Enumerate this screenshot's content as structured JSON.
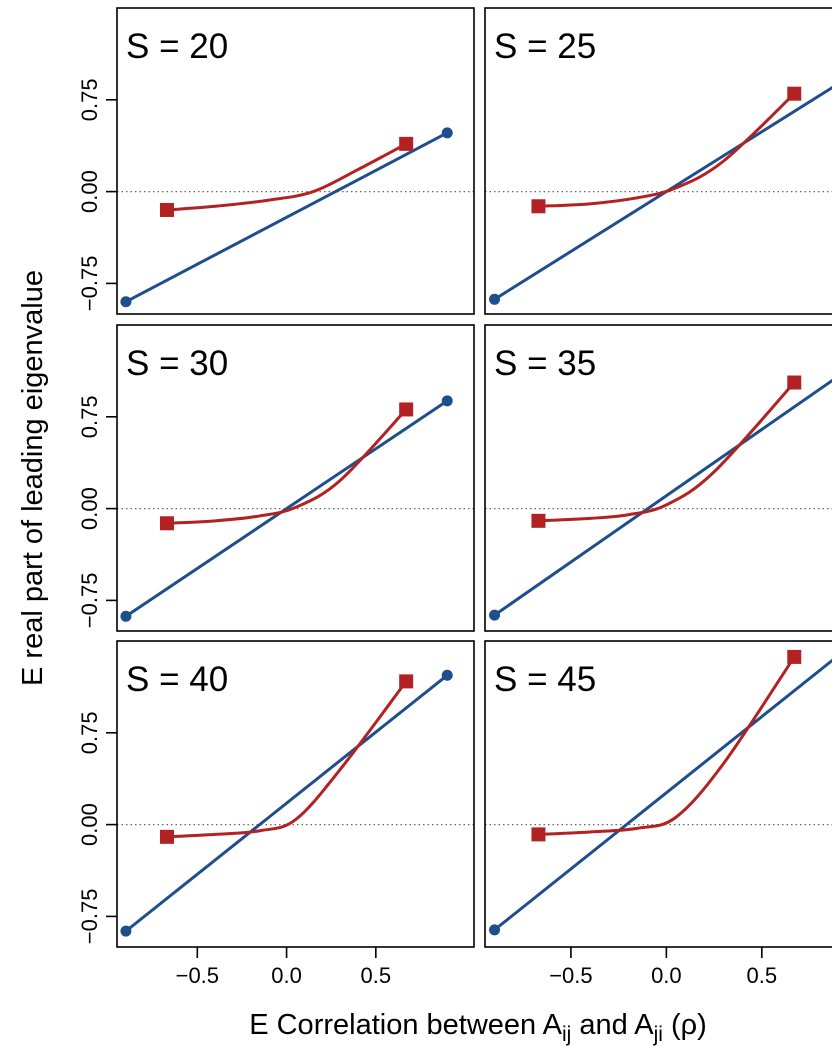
{
  "colors": {
    "linear": "#1f4e8c",
    "nonlinear": "#b22222",
    "zero_line": "#666666",
    "frame": "#000000"
  },
  "axes": {
    "ylabel": "E real part of leading eigenvalue",
    "xlabel": {
      "prefix": "E Correlation between A",
      "sub1": "ij",
      "middle": " and A",
      "sub2": "ji",
      "suffix": " (ρ)"
    },
    "x_tick_labels": [
      "−0.5",
      "0.0",
      "0.5"
    ],
    "y_tick_labels": [
      "−0.75",
      "0.00",
      "0.75"
    ]
  },
  "chart_data": [
    {
      "type": "line",
      "title": "S = 20",
      "xlim": [
        -0.95,
        1.05
      ],
      "ylim": [
        -1.0,
        1.5
      ],
      "x_ticks": [
        -0.5,
        0.0,
        0.5
      ],
      "y_ticks": [
        -0.75,
        0.0,
        0.75
      ],
      "grid": false,
      "zero_line": true,
      "series": [
        {
          "marker": "circle",
          "points": [
            [
              -0.9,
              -0.9
            ],
            [
              0.9,
              0.48
            ]
          ]
        },
        {
          "marker": "square",
          "points": [
            [
              -0.67,
              -0.15
            ],
            [
              -0.4,
              -0.12
            ],
            [
              -0.1,
              -0.07
            ],
            [
              0.15,
              0.0
            ],
            [
              0.4,
              0.18
            ],
            [
              0.67,
              0.39
            ]
          ]
        }
      ]
    },
    {
      "type": "line",
      "title": "S = 25",
      "xlim": [
        -0.95,
        0.92
      ],
      "ylim": [
        -1.0,
        1.5
      ],
      "x_ticks": [
        -0.5,
        0.0,
        0.5
      ],
      "y_ticks": [
        -0.75,
        0.0,
        0.75
      ],
      "grid": false,
      "zero_line": true,
      "series": [
        {
          "marker": "circle",
          "points": [
            [
              -0.9,
              -0.88
            ],
            [
              0.9,
              0.88
            ]
          ]
        },
        {
          "marker": "square",
          "points": [
            [
              -0.67,
              -0.12
            ],
            [
              -0.4,
              -0.1
            ],
            [
              -0.15,
              -0.05
            ],
            [
              0.05,
              0.03
            ],
            [
              0.3,
              0.25
            ],
            [
              0.67,
              0.8
            ]
          ]
        }
      ]
    },
    {
      "type": "line",
      "title": "S = 30",
      "xlim": [
        -0.95,
        1.05
      ],
      "ylim": [
        -1.0,
        1.5
      ],
      "x_ticks": [
        -0.5,
        0.0,
        0.5
      ],
      "y_ticks": [
        -0.75,
        0.0,
        0.75
      ],
      "grid": false,
      "zero_line": true,
      "series": [
        {
          "marker": "circle",
          "points": [
            [
              -0.9,
              -0.88
            ],
            [
              0.9,
              0.88
            ]
          ]
        },
        {
          "marker": "square",
          "points": [
            [
              -0.67,
              -0.12
            ],
            [
              -0.4,
              -0.1
            ],
            [
              -0.15,
              -0.06
            ],
            [
              0.05,
              0.01
            ],
            [
              0.3,
              0.23
            ],
            [
              0.67,
              0.81
            ]
          ]
        }
      ]
    },
    {
      "type": "line",
      "title": "S = 35",
      "xlim": [
        -0.95,
        0.92
      ],
      "ylim": [
        -1.0,
        1.5
      ],
      "x_ticks": [
        -0.5,
        0.0,
        0.5
      ],
      "y_ticks": [
        -0.75,
        0.0,
        0.75
      ],
      "grid": false,
      "zero_line": true,
      "series": [
        {
          "marker": "circle",
          "points": [
            [
              -0.9,
              -0.87
            ],
            [
              0.9,
              1.08
            ]
          ]
        },
        {
          "marker": "square",
          "points": [
            [
              -0.67,
              -0.1
            ],
            [
              -0.4,
              -0.08
            ],
            [
              -0.2,
              -0.05
            ],
            [
              0.0,
              0.03
            ],
            [
              0.25,
              0.3
            ],
            [
              0.67,
              1.03
            ]
          ]
        }
      ]
    },
    {
      "type": "line",
      "title": "S = 40",
      "xlim": [
        -0.95,
        1.05
      ],
      "ylim": [
        -1.0,
        1.5
      ],
      "x_ticks": [
        -0.5,
        0.0,
        0.5
      ],
      "y_ticks": [
        -0.75,
        0.0,
        0.75
      ],
      "grid": false,
      "zero_line": true,
      "series": [
        {
          "marker": "circle",
          "points": [
            [
              -0.9,
              -0.87
            ],
            [
              0.9,
              1.22
            ]
          ]
        },
        {
          "marker": "square",
          "points": [
            [
              -0.67,
              -0.1
            ],
            [
              -0.4,
              -0.08
            ],
            [
              -0.15,
              -0.05
            ],
            [
              0.05,
              0.04
            ],
            [
              0.3,
              0.45
            ],
            [
              0.67,
              1.17
            ]
          ]
        }
      ]
    },
    {
      "type": "line",
      "title": "S = 45",
      "xlim": [
        -0.95,
        0.92
      ],
      "ylim": [
        -1.0,
        1.5
      ],
      "x_ticks": [
        -0.5,
        0.0,
        0.5
      ],
      "y_ticks": [
        -0.75,
        0.0,
        0.75
      ],
      "grid": false,
      "zero_line": true,
      "series": [
        {
          "marker": "circle",
          "points": [
            [
              -0.9,
              -0.86
            ],
            [
              0.9,
              1.38
            ]
          ]
        },
        {
          "marker": "square",
          "points": [
            [
              -0.67,
              -0.08
            ],
            [
              -0.4,
              -0.06
            ],
            [
              -0.15,
              -0.03
            ],
            [
              0.05,
              0.06
            ],
            [
              0.3,
              0.5
            ],
            [
              0.67,
              1.37
            ]
          ]
        }
      ]
    }
  ]
}
